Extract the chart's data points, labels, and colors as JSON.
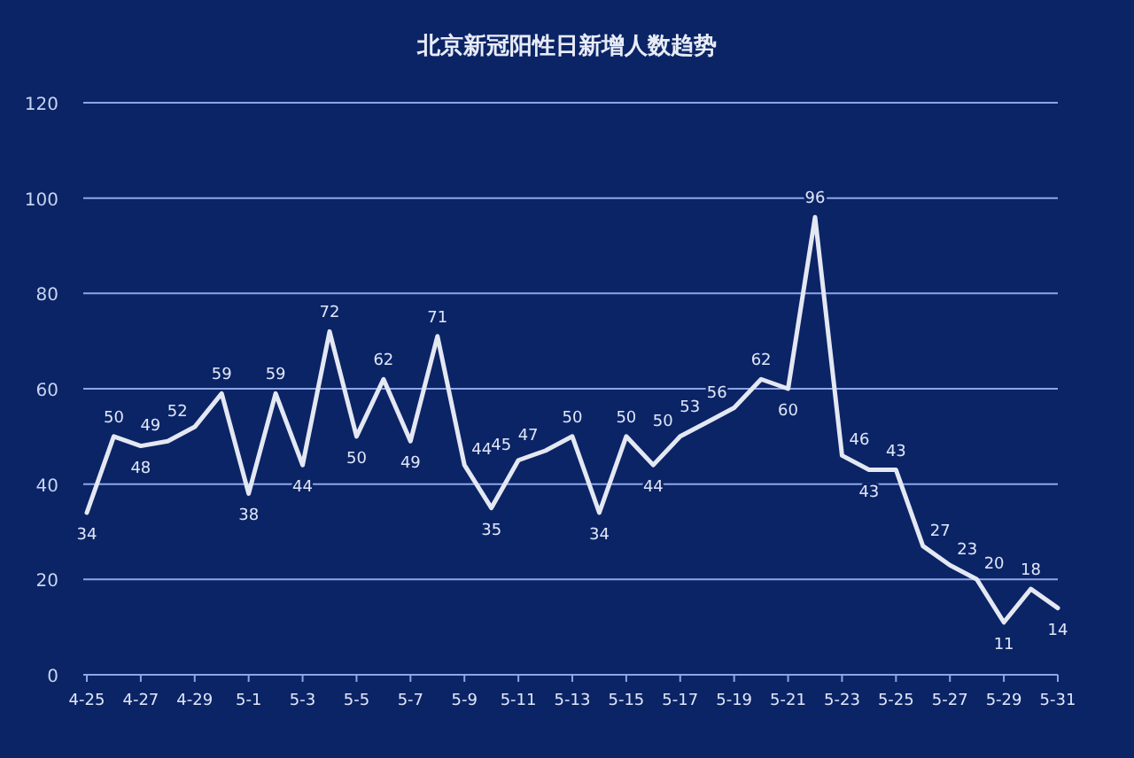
{
  "chart_data": {
    "type": "line",
    "title": "北京新冠阳性日新增人数趋势",
    "categories": [
      "4-25",
      null,
      "4-27",
      null,
      "4-29",
      null,
      "5-1",
      null,
      "5-3",
      null,
      "5-5",
      null,
      "5-7",
      null,
      "5-9",
      null,
      "5-11",
      null,
      "5-13",
      null,
      "5-15",
      null,
      "5-17",
      null,
      "5-19",
      null,
      "5-21",
      null,
      "5-23",
      null,
      "5-25",
      null,
      "5-27",
      null,
      "5-29",
      null,
      "5-31"
    ],
    "series": [
      {
        "color": "#e4e8f2",
        "values": [
          34,
          50,
          48,
          49,
          52,
          59,
          38,
          59,
          44,
          72,
          50,
          62,
          49,
          71,
          44,
          35,
          45,
          47,
          50,
          34,
          50,
          44,
          50,
          53,
          56,
          62,
          60,
          96,
          46,
          43,
          43,
          27,
          23,
          20,
          11,
          18,
          14
        ]
      }
    ],
    "ylim": [
      0,
      120
    ],
    "yticks": [
      0,
      20,
      40,
      60,
      80,
      100,
      120
    ],
    "grid": "y",
    "data_labels": true,
    "marker": "none",
    "line_style": "solid"
  }
}
